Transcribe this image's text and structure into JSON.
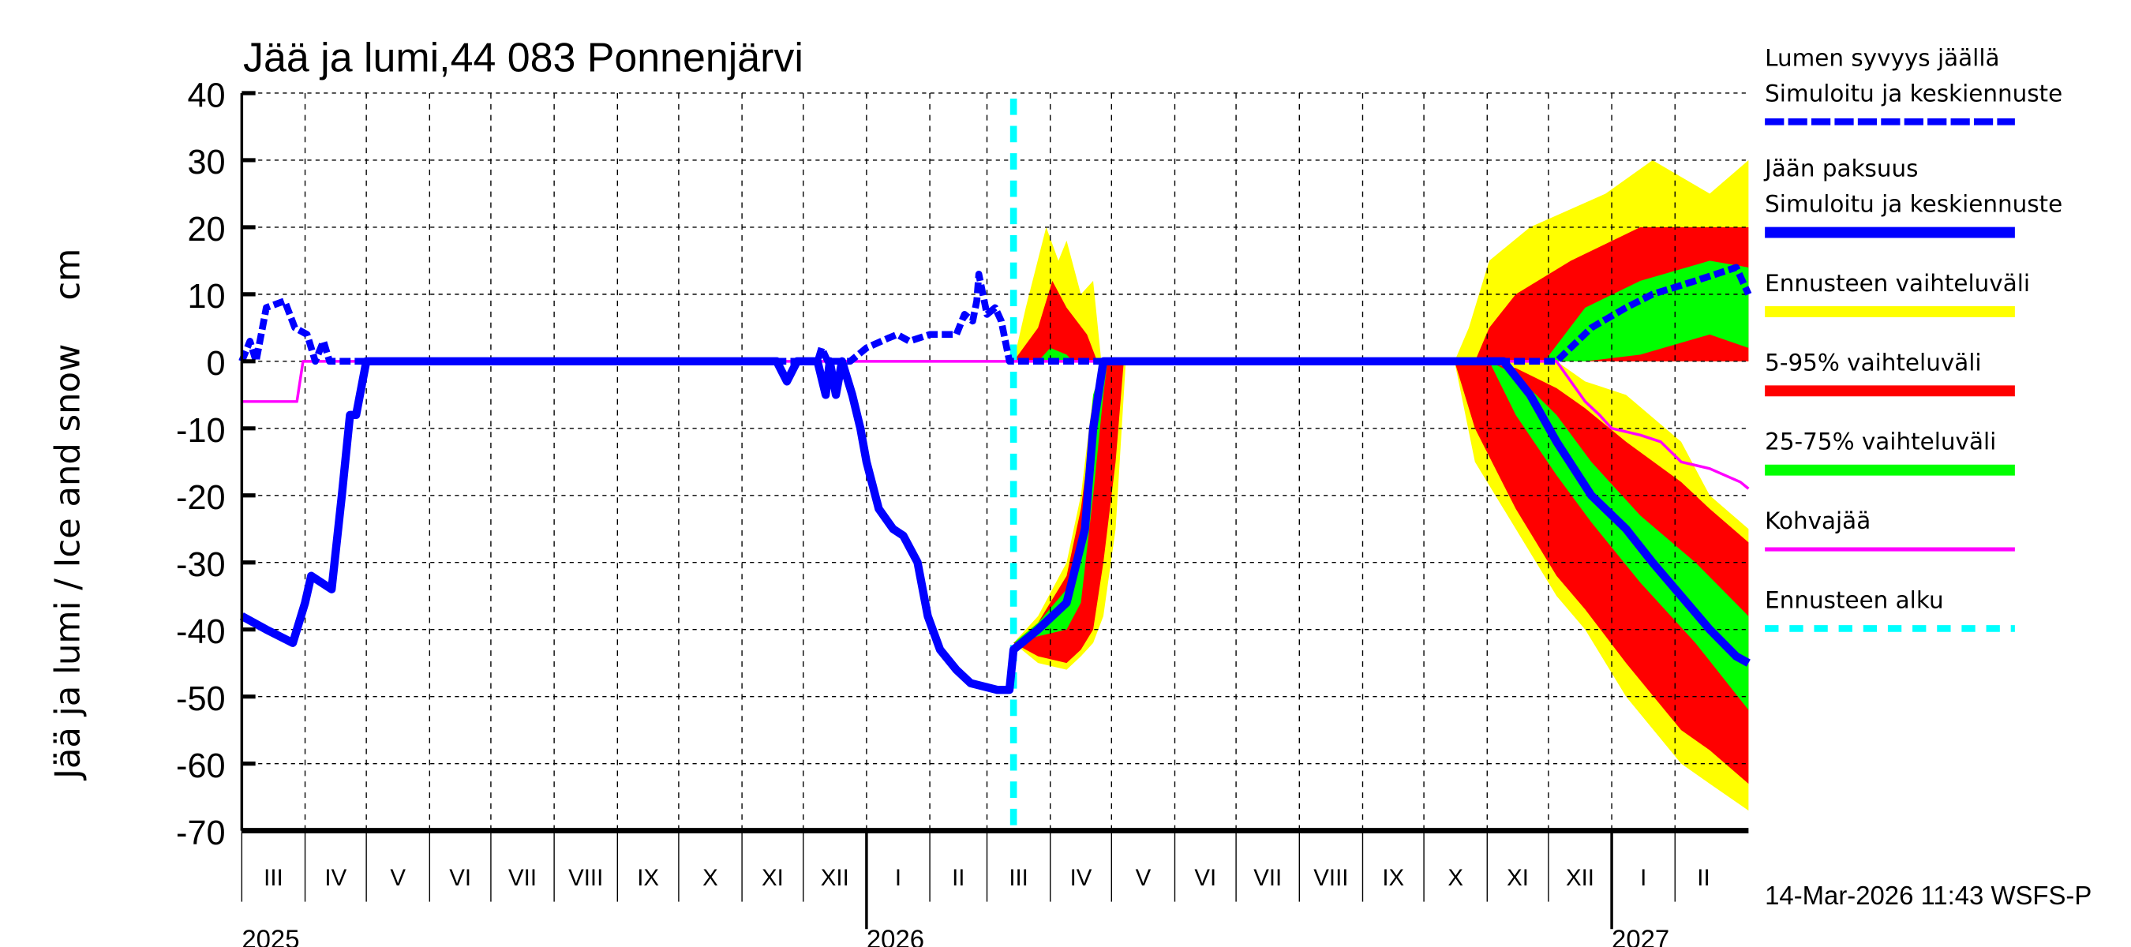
{
  "chart_data": {
    "type": "area",
    "title": "Jää ja lumi,44 083 Ponnenjärvi",
    "ylabel": "Jää ja lumi / Ice and snow    cm",
    "ylim": [
      -70,
      40
    ],
    "yticks": [
      40,
      30,
      20,
      10,
      0,
      -10,
      -20,
      -30,
      -40,
      -50,
      -60,
      -70
    ],
    "xlim": [
      "2025-03-01",
      "2027-03-09"
    ],
    "x_month_labels": [
      "III",
      "IV",
      "V",
      "VI",
      "VII",
      "VIII",
      "IX",
      "X",
      "XI",
      "XII",
      "I",
      "II",
      "III",
      "IV",
      "V",
      "VI",
      "VII",
      "VIII",
      "IX",
      "X",
      "XI",
      "XII",
      "I",
      "II"
    ],
    "x_year_labels": [
      {
        "date": "2025-03-01",
        "label": "2025"
      },
      {
        "date": "2026-01-01",
        "label": "2026"
      },
      {
        "date": "2027-01-01",
        "label": "2027"
      }
    ],
    "grid": true,
    "legend_placement": "right",
    "forecast_start": "2026-03-14",
    "timestamp": "14-Mar-2026 11:43 WSFS-P",
    "colors": {
      "snow": "#0000ff",
      "ice": "#0000ff",
      "range": "#ffff00",
      "p5_95": "#ff0000",
      "p25_75": "#00ff00",
      "slush": "#ff00ff",
      "forecast_start": "#00ffff"
    },
    "legend": [
      {
        "label1": "Lumen syvyys jäällä",
        "label2": "Simuloitu ja keskiennuste",
        "color": "#0000ff",
        "style": "dashed"
      },
      {
        "label1": "Jään paksuus",
        "label2": "Simuloitu ja keskiennuste",
        "color": "#0000ff",
        "style": "solid"
      },
      {
        "label1": "Ennusteen vaihteluväli",
        "color": "#ffff00",
        "style": "band"
      },
      {
        "label1": "5-95% vaihteluväli",
        "color": "#ff0000",
        "style": "band"
      },
      {
        "label1": "25-75% vaihteluväli",
        "color": "#00ff00",
        "style": "band"
      },
      {
        "label1": "Kohvajää",
        "color": "#ff00ff",
        "style": "thin"
      },
      {
        "label1": "Ennusteen alku",
        "color": "#00ffff",
        "style": "cyan-dash"
      }
    ],
    "bands": [
      {
        "kind": "range",
        "points": [
          [
            "2026-03-14",
            -42,
            -42
          ],
          [
            "2026-03-26",
            -45,
            -38
          ],
          [
            "2026-04-09",
            -46,
            -30
          ],
          [
            "2026-04-16",
            -44,
            -20
          ],
          [
            "2026-04-22",
            -42,
            -5
          ],
          [
            "2026-04-27",
            -38,
            0
          ],
          [
            "2026-05-03",
            -25,
            0
          ],
          [
            "2026-05-07",
            -5,
            0
          ],
          [
            "2026-05-08",
            0,
            0
          ]
        ]
      },
      {
        "kind": "range",
        "points": [
          [
            "2026-03-14",
            0,
            0
          ],
          [
            "2026-03-20",
            0,
            8
          ],
          [
            "2026-03-30",
            0,
            20
          ],
          [
            "2026-04-05",
            0,
            15
          ],
          [
            "2026-04-09",
            0,
            18
          ],
          [
            "2026-04-16",
            0,
            10
          ],
          [
            "2026-04-22",
            0,
            12
          ],
          [
            "2026-04-26",
            0,
            0
          ]
        ]
      },
      {
        "kind": "range",
        "points": [
          [
            "2026-10-16",
            0,
            0
          ],
          [
            "2026-10-26",
            -15,
            0
          ],
          [
            "2026-11-15",
            -25,
            0
          ],
          [
            "2026-12-05",
            -35,
            0
          ],
          [
            "2026-12-19",
            -40,
            -3
          ],
          [
            "2027-01-08",
            -50,
            -5
          ],
          [
            "2027-02-04",
            -60,
            -12
          ],
          [
            "2027-02-18",
            -63,
            -20
          ],
          [
            "2027-03-09",
            -67,
            -25
          ]
        ]
      },
      {
        "kind": "range",
        "points": [
          [
            "2026-10-16",
            0,
            0
          ],
          [
            "2026-10-23",
            0,
            5
          ],
          [
            "2026-11-02",
            0,
            15
          ],
          [
            "2026-11-22",
            0,
            20
          ],
          [
            "2026-12-29",
            0,
            25
          ],
          [
            "2027-01-21",
            0,
            30
          ],
          [
            "2027-02-18",
            0,
            25
          ],
          [
            "2027-03-09",
            0,
            30
          ]
        ]
      },
      {
        "kind": "p5_95",
        "points": [
          [
            "2026-03-14",
            -42,
            -42
          ],
          [
            "2026-03-26",
            -44,
            -39
          ],
          [
            "2026-04-09",
            -45,
            -32
          ],
          [
            "2026-04-16",
            -43,
            -22
          ],
          [
            "2026-04-22",
            -40,
            -8
          ],
          [
            "2026-04-27",
            -30,
            0
          ],
          [
            "2026-05-03",
            -15,
            0
          ],
          [
            "2026-05-07",
            0,
            0
          ]
        ]
      },
      {
        "kind": "p5_95",
        "points": [
          [
            "2026-03-14",
            0,
            0
          ],
          [
            "2026-03-26",
            0,
            5
          ],
          [
            "2026-04-02",
            0,
            12
          ],
          [
            "2026-04-09",
            0,
            8
          ],
          [
            "2026-04-19",
            0,
            4
          ],
          [
            "2026-04-24",
            0,
            0
          ]
        ]
      },
      {
        "kind": "p5_95",
        "points": [
          [
            "2026-10-16",
            0,
            0
          ],
          [
            "2026-10-26",
            -10,
            0
          ],
          [
            "2026-11-15",
            -22,
            -1
          ],
          [
            "2026-12-05",
            -32,
            -4
          ],
          [
            "2026-12-19",
            -37,
            -7
          ],
          [
            "2027-01-08",
            -45,
            -12
          ],
          [
            "2027-02-04",
            -55,
            -18
          ],
          [
            "2027-02-18",
            -58,
            -22
          ],
          [
            "2027-03-09",
            -63,
            -27
          ]
        ]
      },
      {
        "kind": "p5_95",
        "points": [
          [
            "2026-10-26",
            0,
            0
          ],
          [
            "2026-11-02",
            0,
            5
          ],
          [
            "2026-11-15",
            0,
            10
          ],
          [
            "2026-12-12",
            0,
            15
          ],
          [
            "2027-01-15",
            0,
            20
          ],
          [
            "2027-03-09",
            0,
            20
          ]
        ]
      },
      {
        "kind": "p25_75",
        "points": [
          [
            "2026-03-14",
            -42,
            -42
          ],
          [
            "2026-03-26",
            -41,
            -39
          ],
          [
            "2026-04-09",
            -40,
            -34
          ],
          [
            "2026-04-16",
            -36,
            -25
          ],
          [
            "2026-04-22",
            -20,
            -5
          ],
          [
            "2026-04-27",
            -5,
            0
          ],
          [
            "2026-04-29",
            0,
            0
          ]
        ]
      },
      {
        "kind": "p25_75",
        "points": [
          [
            "2026-03-26",
            0,
            0
          ],
          [
            "2026-04-01",
            0,
            2
          ],
          [
            "2026-04-09",
            0,
            1
          ],
          [
            "2026-04-12",
            0,
            0
          ]
        ]
      },
      {
        "kind": "p25_75",
        "points": [
          [
            "2026-11-02",
            0,
            0
          ],
          [
            "2026-11-15",
            -8,
            -2
          ],
          [
            "2026-12-05",
            -17,
            -8
          ],
          [
            "2026-12-22",
            -24,
            -15
          ],
          [
            "2027-01-15",
            -33,
            -23
          ],
          [
            "2027-02-11",
            -42,
            -30
          ],
          [
            "2027-03-09",
            -52,
            -38
          ]
        ]
      },
      {
        "kind": "p25_75",
        "points": [
          [
            "2026-11-29",
            0,
            0
          ],
          [
            "2026-12-19",
            0,
            8
          ],
          [
            "2027-01-15",
            1,
            12
          ],
          [
            "2027-02-18",
            4,
            15
          ],
          [
            "2027-03-09",
            2,
            14
          ]
        ]
      }
    ],
    "series": [
      {
        "name": "Kohvajää",
        "kind": "slush",
        "points": [
          [
            "2025-03-01",
            -6
          ],
          [
            "2025-03-28",
            -6
          ],
          [
            "2025-03-31",
            0
          ],
          [
            "2026-12-05",
            0
          ],
          [
            "2026-12-12",
            -3
          ],
          [
            "2026-12-19",
            -6
          ],
          [
            "2026-12-26",
            -8
          ],
          [
            "2027-01-01",
            -10
          ],
          [
            "2027-01-15",
            -11
          ],
          [
            "2027-01-25",
            -12
          ],
          [
            "2027-02-04",
            -15
          ],
          [
            "2027-02-18",
            -16
          ],
          [
            "2027-03-05",
            -18
          ],
          [
            "2027-03-09",
            -19
          ]
        ]
      },
      {
        "name": "Jään paksuus",
        "kind": "ice",
        "points": [
          [
            "2025-03-01",
            -38
          ],
          [
            "2025-03-13",
            -40
          ],
          [
            "2025-03-26",
            -42
          ],
          [
            "2025-04-01",
            -36
          ],
          [
            "2025-04-04",
            -32
          ],
          [
            "2025-04-14",
            -34
          ],
          [
            "2025-04-19",
            -20
          ],
          [
            "2025-04-23",
            -8
          ],
          [
            "2025-04-26",
            -8
          ],
          [
            "2025-05-01",
            0
          ],
          [
            "2025-11-18",
            0
          ],
          [
            "2025-11-23",
            -3
          ],
          [
            "2025-11-28",
            0
          ],
          [
            "2025-12-08",
            0
          ],
          [
            "2025-12-12",
            -5
          ],
          [
            "2025-12-14",
            0
          ],
          [
            "2025-12-17",
            -5
          ],
          [
            "2025-12-20",
            0
          ],
          [
            "2025-12-25",
            -5
          ],
          [
            "2025-12-29",
            -10
          ],
          [
            "2026-01-01",
            -15
          ],
          [
            "2026-01-07",
            -22
          ],
          [
            "2026-01-14",
            -25
          ],
          [
            "2026-01-19",
            -26
          ],
          [
            "2026-01-26",
            -30
          ],
          [
            "2026-01-31",
            -38
          ],
          [
            "2026-02-06",
            -43
          ],
          [
            "2026-02-14",
            -46
          ],
          [
            "2026-02-21",
            -48
          ],
          [
            "2026-03-06",
            -49
          ],
          [
            "2026-03-12",
            -49
          ],
          [
            "2026-03-14",
            -43
          ],
          [
            "2026-03-26",
            -40
          ],
          [
            "2026-04-09",
            -36
          ],
          [
            "2026-04-18",
            -25
          ],
          [
            "2026-04-22",
            -10
          ],
          [
            "2026-04-27",
            0
          ],
          [
            "2026-11-09",
            0
          ],
          [
            "2026-11-22",
            -5
          ],
          [
            "2026-12-05",
            -12
          ],
          [
            "2026-12-22",
            -20
          ],
          [
            "2027-01-08",
            -25
          ],
          [
            "2027-01-21",
            -30
          ],
          [
            "2027-02-04",
            -35
          ],
          [
            "2027-02-18",
            -40
          ],
          [
            "2027-03-03",
            -44
          ],
          [
            "2027-03-09",
            -45
          ]
        ]
      },
      {
        "name": "Lumen syvyys jäällä",
        "kind": "snow",
        "points": [
          [
            "2025-03-01",
            0
          ],
          [
            "2025-03-05",
            3
          ],
          [
            "2025-03-08",
            0
          ],
          [
            "2025-03-13",
            8
          ],
          [
            "2025-03-22",
            9
          ],
          [
            "2025-03-27",
            5
          ],
          [
            "2025-04-02",
            4
          ],
          [
            "2025-04-06",
            0
          ],
          [
            "2025-04-10",
            3
          ],
          [
            "2025-04-13",
            0
          ],
          [
            "2025-12-08",
            0
          ],
          [
            "2025-12-10",
            2
          ],
          [
            "2025-12-13",
            0
          ],
          [
            "2025-12-24",
            0
          ],
          [
            "2026-01-01",
            2
          ],
          [
            "2026-01-12",
            3.5
          ],
          [
            "2026-01-16",
            4
          ],
          [
            "2026-01-22",
            3
          ],
          [
            "2026-02-01",
            4
          ],
          [
            "2026-02-14",
            4
          ],
          [
            "2026-02-18",
            7
          ],
          [
            "2026-02-22",
            6
          ],
          [
            "2026-02-24",
            9
          ],
          [
            "2026-02-25",
            13
          ],
          [
            "2026-03-01",
            7
          ],
          [
            "2026-03-05",
            8
          ],
          [
            "2026-03-08",
            6
          ],
          [
            "2026-03-12",
            0
          ],
          [
            "2026-12-05",
            0
          ],
          [
            "2026-12-22",
            5
          ],
          [
            "2027-01-08",
            8
          ],
          [
            "2027-01-21",
            10
          ],
          [
            "2027-02-11",
            12
          ],
          [
            "2027-03-03",
            14
          ],
          [
            "2027-03-09",
            10
          ]
        ]
      }
    ]
  }
}
